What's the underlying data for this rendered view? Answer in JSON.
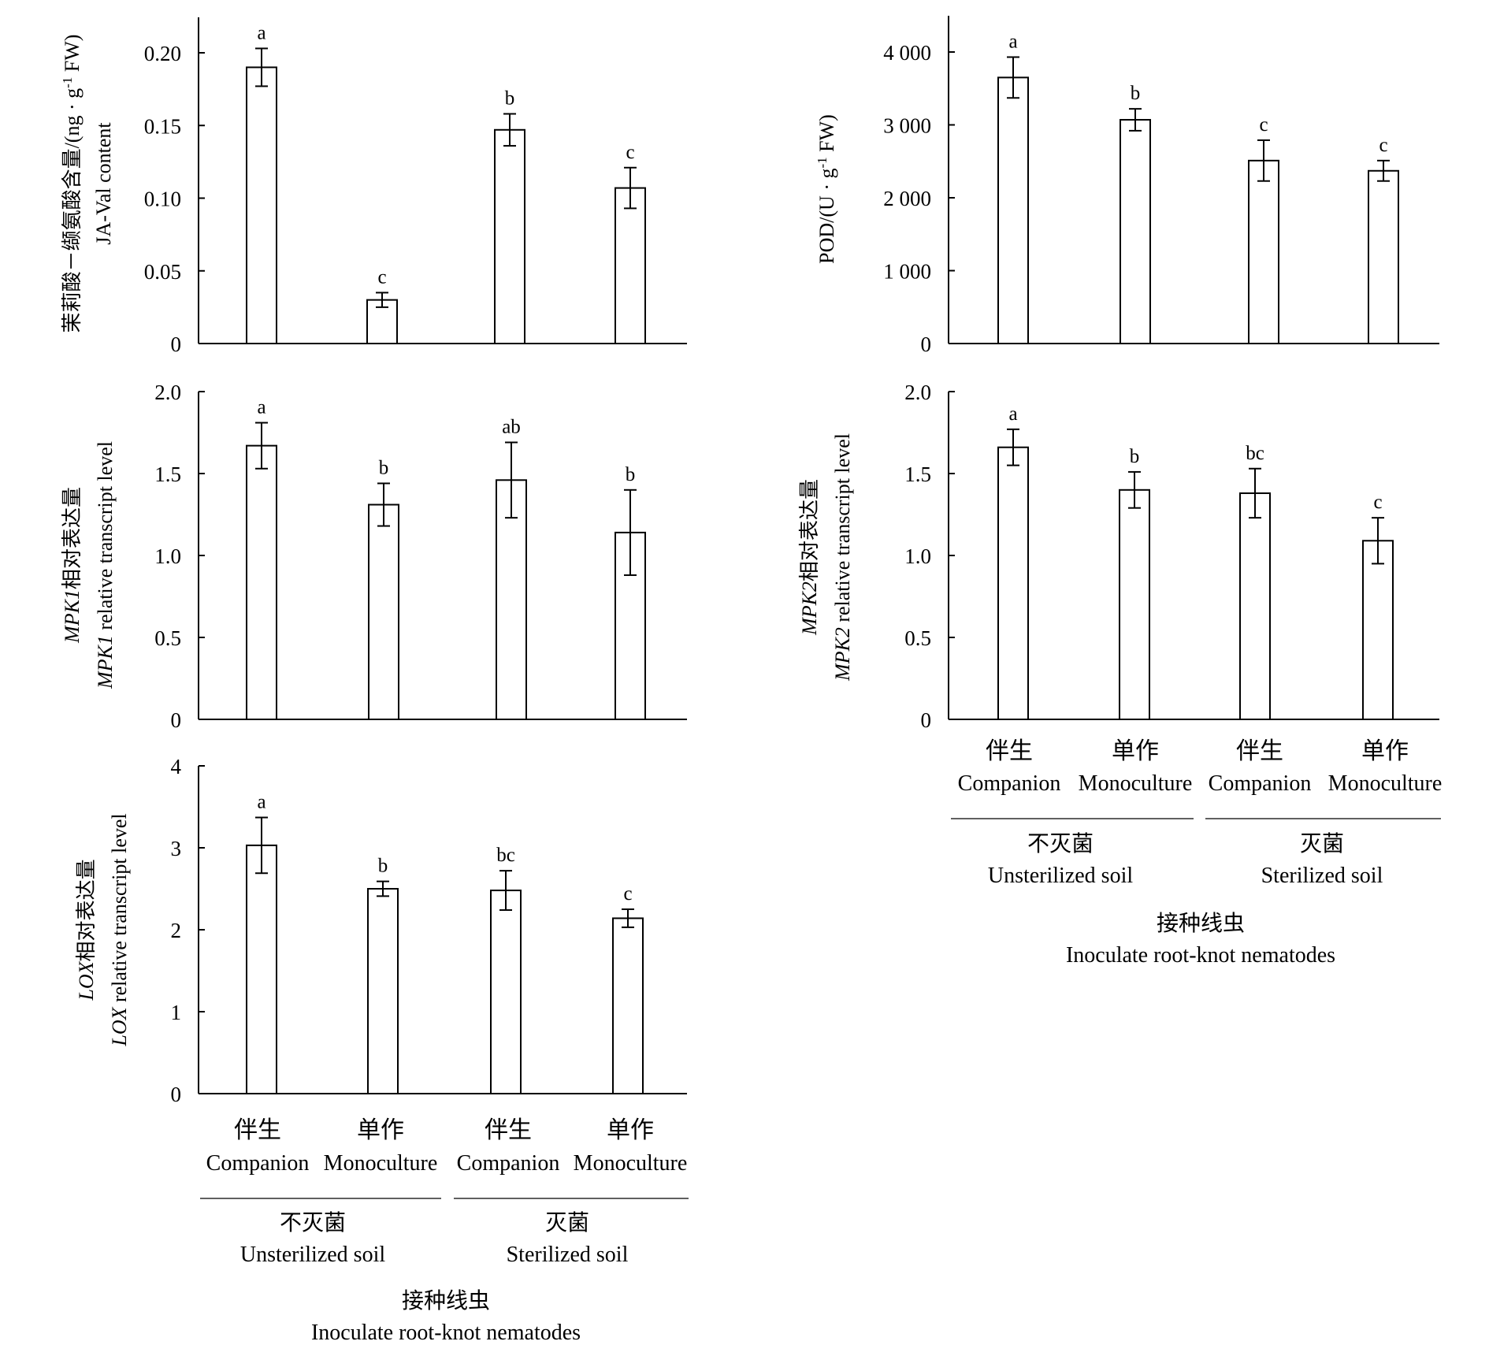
{
  "chart_data": [
    {
      "id": "ja_val",
      "type": "bar",
      "ylabel_cn": "茉莉酸－缬氨酸含量/(ng · g",
      "ylabel_sup": "-1",
      "ylabel_cn_end": " FW)",
      "ylabel_en": "JA-Val content",
      "yticks": [
        "0",
        "0.05",
        "0.10",
        "0.15",
        "0.20"
      ],
      "ylim": [
        0,
        0.225
      ],
      "categories": [
        "Companion",
        "Monoculture",
        "Companion",
        "Monoculture"
      ],
      "values": [
        0.19,
        0.03,
        0.147,
        0.107
      ],
      "errors": [
        0.013,
        0.005,
        0.011,
        0.014
      ],
      "letters": [
        "a",
        "c",
        "b",
        "c"
      ]
    },
    {
      "id": "pod",
      "type": "bar",
      "ylabel_cn": "",
      "ylabel_sup": "-1",
      "ylabel_en": "POD/(U · g",
      "ylabel_en_end": " FW)",
      "yticks": [
        "0",
        "1 000",
        "2 000",
        "3 000",
        "4 000"
      ],
      "ylim": [
        0,
        4500
      ],
      "categories": [
        "Companion",
        "Monoculture",
        "Companion",
        "Monoculture"
      ],
      "values": [
        3650,
        3070,
        2510,
        2370
      ],
      "errors": [
        280,
        150,
        280,
        140
      ],
      "letters": [
        "a",
        "b",
        "c",
        "c"
      ]
    },
    {
      "id": "mpk1",
      "type": "bar",
      "ylabel_cn_gene": "MPK1",
      "ylabel_cn": "相对表达量",
      "ylabel_en_gene": "MPK1",
      "ylabel_en": " relative transcript level",
      "yticks": [
        "0",
        "0.5",
        "1.0",
        "1.5",
        "2.0"
      ],
      "ylim": [
        0,
        2.0
      ],
      "categories": [
        "Companion",
        "Monoculture",
        "Companion",
        "Monoculture"
      ],
      "values": [
        1.67,
        1.31,
        1.46,
        1.14
      ],
      "errors": [
        0.14,
        0.13,
        0.23,
        0.26
      ],
      "letters": [
        "a",
        "b",
        "ab",
        "b"
      ]
    },
    {
      "id": "mpk2",
      "type": "bar",
      "ylabel_cn_gene": "MPK2",
      "ylabel_cn": "相对表达量",
      "ylabel_en_gene": "MPK2",
      "ylabel_en": " relative transcript level",
      "yticks": [
        "0",
        "0.5",
        "1.0",
        "1.5",
        "2.0"
      ],
      "ylim": [
        0,
        2.0
      ],
      "categories": [
        "Companion",
        "Monoculture",
        "Companion",
        "Monoculture"
      ],
      "values": [
        1.66,
        1.4,
        1.38,
        1.09
      ],
      "errors": [
        0.11,
        0.11,
        0.15,
        0.14
      ],
      "letters": [
        "a",
        "b",
        "bc",
        "c"
      ]
    },
    {
      "id": "lox",
      "type": "bar",
      "ylabel_cn_gene": "LOX",
      "ylabel_cn": "相对表达量",
      "ylabel_en_gene": "LOX",
      "ylabel_en": " relative transcript level",
      "yticks": [
        "0",
        "1",
        "2",
        "3",
        "4"
      ],
      "ylim": [
        0,
        4
      ],
      "categories": [
        "Companion",
        "Monoculture",
        "Companion",
        "Monoculture"
      ],
      "values": [
        3.03,
        2.5,
        2.48,
        2.14
      ],
      "errors": [
        0.34,
        0.09,
        0.24,
        0.11
      ],
      "letters": [
        "a",
        "b",
        "bc",
        "c"
      ]
    }
  ],
  "x_axis": {
    "categories_cn": [
      "伴生",
      "单作",
      "伴生",
      "单作"
    ],
    "categories_en": [
      "Companion",
      "Monoculture",
      "Companion",
      "Monoculture"
    ],
    "groups": [
      {
        "cn": "不灭菌",
        "en": "Unsterilized soil"
      },
      {
        "cn": "灭菌",
        "en": "Sterilized soil"
      }
    ],
    "treatment_cn": "接种线虫",
    "treatment_en": "Inoculate root-knot nematodes"
  }
}
